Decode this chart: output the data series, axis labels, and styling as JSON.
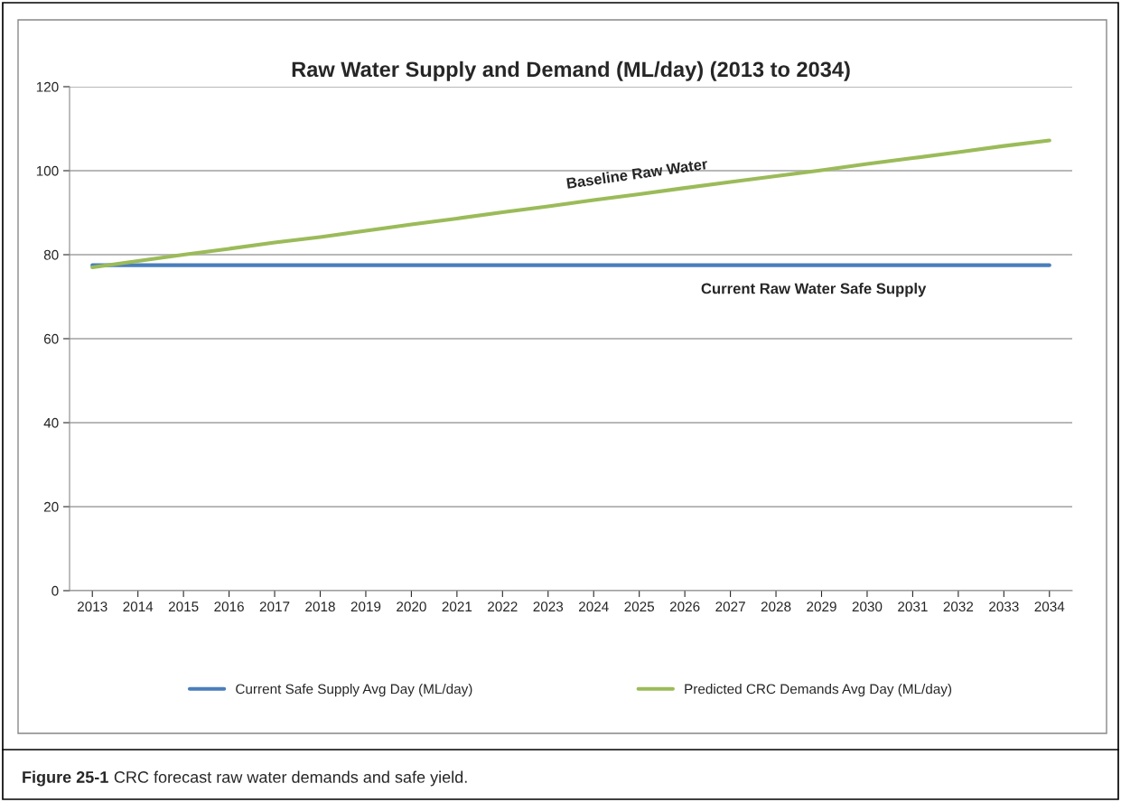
{
  "chart_data": {
    "type": "line",
    "title": "Raw Water Supply and Demand (ML/day) (2013 to 2034)",
    "categories": [
      "2013",
      "2014",
      "2015",
      "2016",
      "2017",
      "2018",
      "2019",
      "2020",
      "2021",
      "2022",
      "2023",
      "2024",
      "2025",
      "2026",
      "2027",
      "2028",
      "2029",
      "2030",
      "2031",
      "2032",
      "2033",
      "2034"
    ],
    "series": [
      {
        "name": "Current Safe Supply Avg Day (ML/day)",
        "color": "#4a7ebb",
        "values": [
          77.5,
          77.5,
          77.5,
          77.5,
          77.5,
          77.5,
          77.5,
          77.5,
          77.5,
          77.5,
          77.5,
          77.5,
          77.5,
          77.5,
          77.5,
          77.5,
          77.5,
          77.5,
          77.5,
          77.5,
          77.5,
          77.5
        ]
      },
      {
        "name": "Predicted CRC Demands Avg Day (ML/day)",
        "color": "#9bbb59",
        "values": [
          77.0,
          78.5,
          80.0,
          81.4,
          82.9,
          84.2,
          85.7,
          87.2,
          88.6,
          90.1,
          91.5,
          93.0,
          94.4,
          95.9,
          97.3,
          98.7,
          100.1,
          101.6,
          103.0,
          104.4,
          105.9,
          107.2
        ]
      }
    ],
    "ylim": [
      0,
      120
    ],
    "yticks": [
      0,
      20,
      40,
      60,
      80,
      100,
      120
    ],
    "grid": "y",
    "legend": "bottom",
    "marker": "none",
    "line_style": "solid",
    "annotations": [
      "Baseline Raw Water",
      "Current Raw Water Safe Supply",
      "Figure 25-1",
      "CRC forecast raw water demands and safe yield."
    ]
  }
}
